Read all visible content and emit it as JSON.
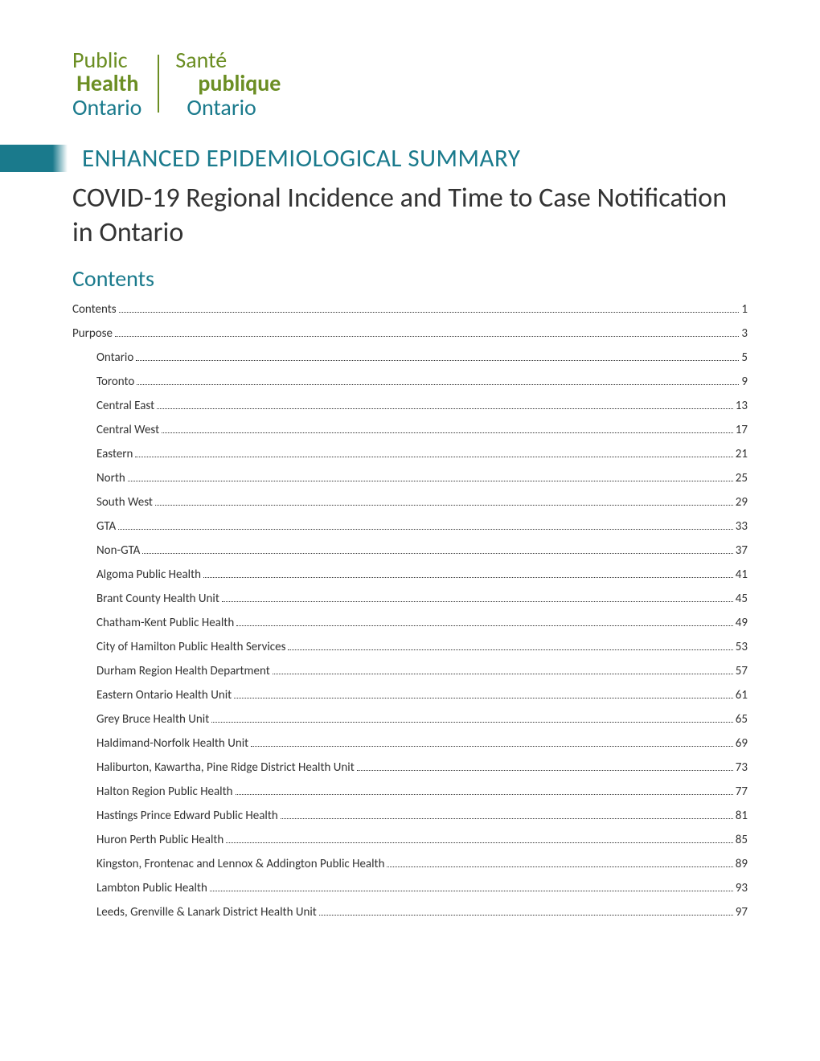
{
  "logo": {
    "en": {
      "line1": "Public",
      "line2": "Health",
      "line3": "Ontario"
    },
    "fr": {
      "line1": "Santé",
      "line2": "publique",
      "line3": "Ontario"
    }
  },
  "eyebrow": "ENHANCED EPIDEMIOLOGICAL SUMMARY",
  "title": "COVID-19 Regional Incidence and Time to Case Notification in Ontario",
  "contents_heading": "Contents",
  "colors": {
    "brand_green": "#6b8e23",
    "brand_teal": "#1a7a8c",
    "text": "#333333",
    "background": "#ffffff"
  },
  "toc": [
    {
      "label": "Contents",
      "page": "1",
      "level": 1
    },
    {
      "label": "Purpose",
      "page": "3",
      "level": 1
    },
    {
      "label": "Ontario",
      "page": "5",
      "level": 2
    },
    {
      "label": "Toronto",
      "page": "9",
      "level": 2
    },
    {
      "label": "Central East",
      "page": "13",
      "level": 2
    },
    {
      "label": "Central West",
      "page": "17",
      "level": 2
    },
    {
      "label": "Eastern",
      "page": "21",
      "level": 2
    },
    {
      "label": "North",
      "page": "25",
      "level": 2
    },
    {
      "label": "South West",
      "page": "29",
      "level": 2
    },
    {
      "label": "GTA",
      "page": "33",
      "level": 2
    },
    {
      "label": "Non-GTA",
      "page": "37",
      "level": 2
    },
    {
      "label": "Algoma Public Health",
      "page": "41",
      "level": 2
    },
    {
      "label": "Brant County Health Unit",
      "page": "45",
      "level": 2
    },
    {
      "label": "Chatham-Kent Public Health",
      "page": "49",
      "level": 2
    },
    {
      "label": "City of Hamilton Public Health Services",
      "page": "53",
      "level": 2
    },
    {
      "label": "Durham Region Health Department",
      "page": "57",
      "level": 2
    },
    {
      "label": "Eastern Ontario Health Unit",
      "page": "61",
      "level": 2
    },
    {
      "label": "Grey Bruce Health Unit",
      "page": "65",
      "level": 2
    },
    {
      "label": "Haldimand-Norfolk Health Unit",
      "page": "69",
      "level": 2
    },
    {
      "label": "Haliburton, Kawartha, Pine Ridge District Health Unit",
      "page": "73",
      "level": 2
    },
    {
      "label": "Halton Region Public Health",
      "page": "77",
      "level": 2
    },
    {
      "label": "Hastings Prince Edward Public Health",
      "page": "81",
      "level": 2
    },
    {
      "label": "Huron Perth Public Health",
      "page": "85",
      "level": 2
    },
    {
      "label": "Kingston, Frontenac and Lennox & Addington Public Health",
      "page": "89",
      "level": 2
    },
    {
      "label": "Lambton Public Health",
      "page": "93",
      "level": 2
    },
    {
      "label": "Leeds, Grenville & Lanark District Health Unit",
      "page": "97",
      "level": 2
    }
  ]
}
